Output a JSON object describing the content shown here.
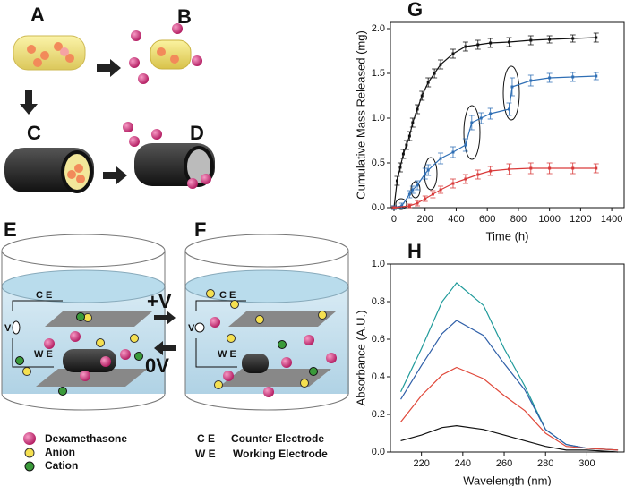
{
  "chart_data": [
    {
      "type": "line",
      "title": "G",
      "x_label": "Time (h)",
      "y_label": "Cumulative Mass Released (mg)",
      "xlim": [
        -23,
        1480
      ],
      "xticks": [
        0,
        200,
        400,
        600,
        800,
        1000,
        1200,
        1400
      ],
      "ylim": [
        0,
        2.07
      ],
      "yticks": [
        {
          "value": 0,
          "label": "0.0"
        },
        0.5,
        {
          "value": 1,
          "label": "1.0"
        },
        1.5,
        {
          "value": 2,
          "label": "2.0"
        }
      ],
      "markers": true,
      "series": [
        {
          "color": "#111111",
          "x": [
            0,
            20,
            40,
            60,
            80,
            100,
            120,
            150,
            180,
            220,
            260,
            300,
            380,
            460,
            540,
            620,
            740,
            880,
            1000,
            1150,
            1300
          ],
          "values": [
            0,
            0.3,
            0.45,
            0.6,
            0.7,
            0.8,
            0.95,
            1.1,
            1.25,
            1.4,
            1.5,
            1.6,
            1.72,
            1.8,
            1.82,
            1.84,
            1.85,
            1.87,
            1.88,
            1.89,
            1.9
          ],
          "errors": [
            0.02,
            0.05,
            0.05,
            0.05,
            0.05,
            0.05,
            0.05,
            0.05,
            0.05,
            0.05,
            0.05,
            0.05,
            0.05,
            0.05,
            0.05,
            0.05,
            0.05,
            0.05,
            0.04,
            0.04,
            0.05
          ]
        },
        {
          "color": "#2f6fb5",
          "x": [
            0,
            50,
            100,
            120,
            150,
            200,
            220,
            300,
            380,
            460,
            500,
            560,
            620,
            740,
            760,
            880,
            1000,
            1150,
            1300
          ],
          "values": [
            0,
            0.02,
            0.15,
            0.2,
            0.25,
            0.38,
            0.42,
            0.55,
            0.62,
            0.7,
            0.95,
            1.0,
            1.05,
            1.1,
            1.35,
            1.42,
            1.45,
            1.46,
            1.47
          ],
          "errors": [
            0.02,
            0.03,
            0.04,
            0.04,
            0.05,
            0.06,
            0.06,
            0.06,
            0.06,
            0.07,
            0.08,
            0.06,
            0.06,
            0.07,
            0.1,
            0.06,
            0.05,
            0.05,
            0.04
          ]
        },
        {
          "color": "#d93a3a",
          "x": [
            0,
            100,
            150,
            200,
            250,
            300,
            380,
            460,
            540,
            620,
            740,
            880,
            1000,
            1150,
            1300
          ],
          "values": [
            0,
            0.02,
            0.05,
            0.1,
            0.15,
            0.2,
            0.27,
            0.32,
            0.37,
            0.41,
            0.43,
            0.44,
            0.44,
            0.44,
            0.44
          ],
          "errors": [
            0.01,
            0.02,
            0.03,
            0.03,
            0.04,
            0.04,
            0.05,
            0.05,
            0.05,
            0.05,
            0.06,
            0.06,
            0.06,
            0.06,
            0.05
          ]
        }
      ]
    },
    {
      "type": "line",
      "title": "H",
      "x_label": "Wavelength (nm)",
      "y_label": "Absorbance (A.U.)",
      "xlim": [
        205,
        318
      ],
      "xticks": [
        220,
        240,
        260,
        280,
        300
      ],
      "ylim": [
        0,
        1.0
      ],
      "yticks": [
        {
          "value": 0,
          "label": "0.0"
        },
        0.2,
        0.4,
        0.6,
        0.8,
        {
          "value": 1,
          "label": "1.0"
        }
      ],
      "markers": false,
      "series": [
        {
          "color": "#1f9a9a",
          "x": [
            210,
            220,
            230,
            237,
            250,
            260,
            270,
            280,
            290,
            300,
            315
          ],
          "values": [
            0.32,
            0.55,
            0.8,
            0.9,
            0.78,
            0.55,
            0.35,
            0.12,
            0.04,
            0.02,
            0.01
          ]
        },
        {
          "color": "#2f5fa8",
          "x": [
            210,
            220,
            230,
            237,
            250,
            260,
            270,
            280,
            290,
            300,
            315
          ],
          "values": [
            0.28,
            0.46,
            0.63,
            0.7,
            0.62,
            0.47,
            0.33,
            0.12,
            0.04,
            0.02,
            0.01
          ]
        },
        {
          "color": "#e0483a",
          "x": [
            210,
            220,
            230,
            237,
            250,
            260,
            270,
            280,
            290,
            300,
            315
          ],
          "values": [
            0.16,
            0.3,
            0.41,
            0.45,
            0.39,
            0.3,
            0.22,
            0.1,
            0.03,
            0.02,
            0.01
          ]
        },
        {
          "color": "#111111",
          "x": [
            210,
            220,
            230,
            237,
            250,
            260,
            270,
            280,
            290,
            300,
            315
          ],
          "values": [
            0.06,
            0.09,
            0.13,
            0.14,
            0.12,
            0.09,
            0.06,
            0.03,
            0.01,
            0.01,
            0
          ]
        }
      ]
    }
  ],
  "diagram": {
    "panel_labels": [
      "A",
      "B",
      "C",
      "D",
      "E",
      "F"
    ],
    "switch": [
      "+V",
      "0V"
    ],
    "electrodes": [
      "C E",
      "W E",
      "V"
    ],
    "legend": [
      "Dexamethasone",
      "Anion",
      "Cation",
      "C E",
      "Counter Electrode",
      "W E",
      "Working Electrode"
    ]
  }
}
